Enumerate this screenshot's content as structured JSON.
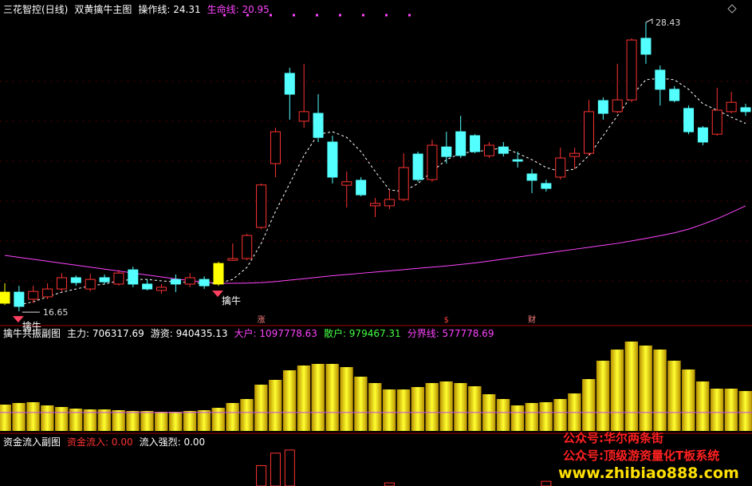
{
  "chart_data": [
    {
      "type": "candlestick",
      "title": "三花智控(日线)",
      "subtitle": "双黄擒牛主图",
      "ylim": [
        16.49,
        28.69
      ],
      "up_color": "#ff3232",
      "down_color": "#54ffff",
      "highlight_color": "#ffff00",
      "highlight_candles": [
        0,
        15
      ],
      "open": [
        16.98,
        17.43,
        17.14,
        17.24,
        17.56,
        18.02,
        17.56,
        18.02,
        17.76,
        18.34,
        17.76,
        17.5,
        17.95,
        17.76,
        17.95,
        17.76,
        18.73,
        18.8,
        20.07,
        22.67,
        26.35,
        24.4,
        24.72,
        23.55,
        21.79,
        21.99,
        20.95,
        20.95,
        21.21,
        23.06,
        22.02,
        23.35,
        23.97,
        23.81,
        22.99,
        23.35,
        22.83,
        22.25,
        21.86,
        22.12,
        22.96,
        23.09,
        25.24,
        24.79,
        25.27,
        27.78,
        26.48,
        25.7,
        24.92,
        24.13,
        23.87,
        24.79,
        24.95
      ],
      "high": [
        17.79,
        17.69,
        17.69,
        17.79,
        18.21,
        18.11,
        18.18,
        18.15,
        18.34,
        18.47,
        17.95,
        17.76,
        18.15,
        18.21,
        18.08,
        18.67,
        19.42,
        19.81,
        21.86,
        24.13,
        26.58,
        26.74,
        25.5,
        23.81,
        22.35,
        22.12,
        21.27,
        21.6,
        23.09,
        23.16,
        23.65,
        23.97,
        24.62,
        23.87,
        23.55,
        23.55,
        23.16,
        22.45,
        22.02,
        23.32,
        23.32,
        25.27,
        25.37,
        26.74,
        27.78,
        28.43,
        26.67,
        25.83,
        25.04,
        24.2,
        25.76,
        25.6,
        25.11
      ],
      "low": [
        16.91,
        16.65,
        16.98,
        17.14,
        17.46,
        17.69,
        17.46,
        17.76,
        17.69,
        17.63,
        17.5,
        17.37,
        17.43,
        17.63,
        17.56,
        17.69,
        18.7,
        18.73,
        20.0,
        22.12,
        24.46,
        24.13,
        23.55,
        21.86,
        20.88,
        21.34,
        20.49,
        20.82,
        21.14,
        21.93,
        21.93,
        22.67,
        22.9,
        23.09,
        22.9,
        22.96,
        22.51,
        21.47,
        21.53,
        22.02,
        22.45,
        22.99,
        24.46,
        24.72,
        25.17,
        26.74,
        25.04,
        25.17,
        23.87,
        23.42,
        23.81,
        24.72,
        24.62
      ],
      "close": [
        17.43,
        16.85,
        17.46,
        17.56,
        18.02,
        17.82,
        17.95,
        17.85,
        18.21,
        17.76,
        17.56,
        17.63,
        17.76,
        18.02,
        17.69,
        18.6,
        18.8,
        19.74,
        21.8,
        23.97,
        25.5,
        24.79,
        23.74,
        22.12,
        21.93,
        21.4,
        21.05,
        21.21,
        22.51,
        22.02,
        23.42,
        22.96,
        23.0,
        23.16,
        23.42,
        23.09,
        22.77,
        21.99,
        21.66,
        22.9,
        23.09,
        24.79,
        24.72,
        25.27,
        27.71,
        27.13,
        25.7,
        25.24,
        23.97,
        23.55,
        24.85,
        25.17,
        24.79
      ],
      "lines": [
        {
          "label": "操作线: 24.31",
          "color": "#ffffff",
          "dashed": true,
          "values": [
            null,
            16.91,
            17.04,
            17.24,
            17.43,
            17.56,
            17.69,
            17.76,
            17.89,
            17.95,
            17.95,
            17.89,
            17.85,
            17.82,
            17.79,
            17.79,
            17.95,
            18.44,
            19.42,
            20.72,
            21.86,
            23.0,
            23.87,
            23.97,
            23.74,
            23.16,
            22.35,
            21.6,
            21.53,
            21.86,
            22.35,
            22.83,
            23.09,
            23.16,
            23.22,
            23.32,
            23.09,
            22.83,
            22.51,
            22.35,
            22.45,
            23.0,
            23.81,
            24.62,
            25.44,
            26.09,
            26.15,
            26.09,
            25.7,
            25.11,
            24.85,
            24.56,
            24.31
          ]
        },
        {
          "label": "生命线: 20.95",
          "color": "#ff44ff",
          "dashed": false,
          "values": [
            18.93,
            18.85,
            18.77,
            18.69,
            18.61,
            18.53,
            18.45,
            18.37,
            18.29,
            18.21,
            18.13,
            18.05,
            17.97,
            17.9,
            17.84,
            17.79,
            17.79,
            17.8,
            17.82,
            17.86,
            17.92,
            17.98,
            18.04,
            18.1,
            18.15,
            18.2,
            18.25,
            18.3,
            18.35,
            18.4,
            18.45,
            18.5,
            18.56,
            18.62,
            18.7,
            18.78,
            18.86,
            18.94,
            19.02,
            19.1,
            19.18,
            19.26,
            19.34,
            19.42,
            19.52,
            19.62,
            19.73,
            19.85,
            20.0,
            20.2,
            20.42,
            20.68,
            20.95
          ]
        }
      ],
      "signals": [
        {
          "index": 1,
          "text": "擒牛"
        },
        {
          "index": 15,
          "text": "擒牛"
        }
      ],
      "markers": [
        {
          "index": 18,
          "text": "涨"
        },
        {
          "index": 31,
          "text": "$"
        },
        {
          "index": 37,
          "text": "财"
        }
      ]
    },
    {
      "type": "bar",
      "title": "擒牛共振副图",
      "color": "#ffe600",
      "ylim": [
        0,
        3275000
      ],
      "legend": [
        {
          "label": "主力: 706317.69",
          "color": "#ffffff"
        },
        {
          "label": "游资: 940435.13",
          "color": "#ffffff"
        },
        {
          "label": "大户: 1097778.63",
          "color": "#ff44ff"
        },
        {
          "label": "散户: 979467.31",
          "color": "#44ff44"
        },
        {
          "label": "分界线: 577778.69",
          "color": "#ff44ff"
        }
      ],
      "threshold": 577778.69,
      "threshold_color": "#c040ff",
      "values": [
        825000,
        875000,
        900000,
        800000,
        750000,
        700000,
        675000,
        675000,
        650000,
        625000,
        625000,
        600000,
        600000,
        625000,
        650000,
        725000,
        875000,
        1000000,
        1450000,
        1600000,
        1900000,
        2050000,
        2100000,
        2100000,
        2000000,
        1700000,
        1500000,
        1300000,
        1300000,
        1375000,
        1500000,
        1550000,
        1500000,
        1400000,
        1150000,
        1000000,
        800000,
        875000,
        900000,
        1000000,
        1175000,
        1625000,
        2200000,
        2550000,
        2800000,
        2675000,
        2550000,
        2200000,
        1925000,
        1550000,
        1325000,
        1325000,
        1250000
      ]
    },
    {
      "type": "bar",
      "title": "资金流入副图",
      "color": "#ff3232",
      "ylim": [
        0,
        50
      ],
      "legend": [
        {
          "label": "资金流入: 0.00",
          "color": "#ff3232"
        },
        {
          "label": "流入强烈: 0.00",
          "color": "#ffffff"
        }
      ],
      "values": [
        null,
        null,
        null,
        null,
        null,
        null,
        null,
        null,
        null,
        null,
        null,
        null,
        null,
        null,
        null,
        null,
        null,
        null,
        26,
        42,
        46,
        null,
        null,
        null,
        null,
        null,
        null,
        4,
        null,
        null,
        null,
        null,
        null,
        null,
        null,
        null,
        null,
        null,
        6,
        null,
        null,
        null,
        null,
        null,
        null,
        null,
        null,
        null,
        null,
        null,
        null,
        null,
        null
      ]
    }
  ],
  "watermark": {
    "line1": "公众号:华尔两条街",
    "line2": "公众号:顶级游资量化T板系统",
    "line3": "www.zhibiao888.com"
  }
}
